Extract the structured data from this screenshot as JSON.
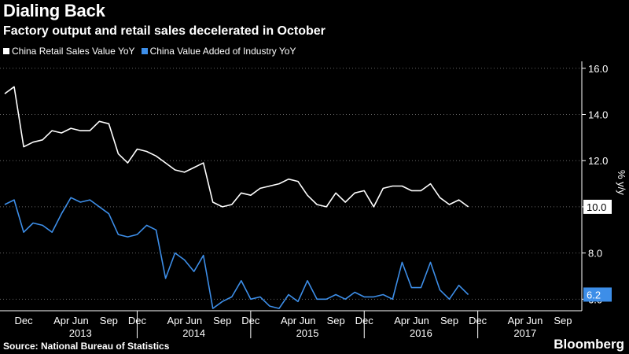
{
  "header": {
    "title": "Dialing Back",
    "subtitle": "Factory output and retail sales decelerated in October"
  },
  "legend": [
    {
      "label": "China Retail Sales Value YoY",
      "color": "#ffffff"
    },
    {
      "label": "China Value Added of Industry YoY",
      "color": "#3d8ee8"
    }
  ],
  "footer": {
    "source": "Source: National Bureau of Statistics",
    "brand": "Bloomberg"
  },
  "chart_data": {
    "type": "line",
    "ylabel": "% y/y",
    "ylim": [
      5.5,
      16.3
    ],
    "yticks": [
      6.0,
      8.0,
      10.0,
      12.0,
      14.0,
      16.0
    ],
    "ytick_labels": [
      "6.0",
      "8.0",
      "10.0",
      "12.0",
      "14.0",
      "16.0"
    ],
    "grid": "horizontal dotted",
    "x_month_ticks": [
      {
        "label": "Dec",
        "date": "2012-12"
      },
      {
        "label": "Apr",
        "date": "2013-04"
      },
      {
        "label": "Jun",
        "date": "2013-06"
      },
      {
        "label": "Sep",
        "date": "2013-09"
      },
      {
        "label": "Dec",
        "date": "2013-12"
      },
      {
        "label": "Apr",
        "date": "2014-04"
      },
      {
        "label": "Jun",
        "date": "2014-06"
      },
      {
        "label": "Sep",
        "date": "2014-09"
      },
      {
        "label": "Dec",
        "date": "2014-12"
      },
      {
        "label": "Apr",
        "date": "2015-04"
      },
      {
        "label": "Jun",
        "date": "2015-06"
      },
      {
        "label": "Sep",
        "date": "2015-09"
      },
      {
        "label": "Dec",
        "date": "2015-12"
      },
      {
        "label": "Apr",
        "date": "2016-04"
      },
      {
        "label": "Jun",
        "date": "2016-06"
      },
      {
        "label": "Sep",
        "date": "2016-09"
      },
      {
        "label": "Dec",
        "date": "2016-12"
      },
      {
        "label": "Apr",
        "date": "2017-04"
      },
      {
        "label": "Jun",
        "date": "2017-06"
      },
      {
        "label": "Sep",
        "date": "2017-09"
      }
    ],
    "x_year_labels": [
      {
        "label": "2013",
        "start": "2012-12",
        "end": "2013-12"
      },
      {
        "label": "2014",
        "start": "2013-12",
        "end": "2014-12"
      },
      {
        "label": "2015",
        "start": "2014-12",
        "end": "2015-12"
      },
      {
        "label": "2016",
        "start": "2015-12",
        "end": "2016-12"
      },
      {
        "label": "2017",
        "start": "2016-12",
        "end": "2017-10"
      }
    ],
    "series": [
      {
        "name": "China Retail Sales Value YoY",
        "color": "#ffffff",
        "last_label": "10.0",
        "points": [
          [
            "2012-10",
            14.9
          ],
          [
            "2012-11",
            15.2
          ],
          [
            "2012-12",
            12.6
          ],
          [
            "2013-01",
            12.8
          ],
          [
            "2013-02",
            12.9
          ],
          [
            "2013-03",
            13.3
          ],
          [
            "2013-04",
            13.2
          ],
          [
            "2013-05",
            13.4
          ],
          [
            "2013-06",
            13.3
          ],
          [
            "2013-07",
            13.3
          ],
          [
            "2013-08",
            13.7
          ],
          [
            "2013-09",
            13.6
          ],
          [
            "2013-10",
            12.3
          ],
          [
            "2013-11",
            11.9
          ],
          [
            "2013-12",
            12.5
          ],
          [
            "2014-01",
            12.4
          ],
          [
            "2014-02",
            12.2
          ],
          [
            "2014-03",
            11.9
          ],
          [
            "2014-04",
            11.6
          ],
          [
            "2014-05",
            11.5
          ],
          [
            "2014-06",
            11.7
          ],
          [
            "2014-07",
            11.9
          ],
          [
            "2014-08",
            10.2
          ],
          [
            "2014-09",
            10.0
          ],
          [
            "2014-10",
            10.1
          ],
          [
            "2014-11",
            10.6
          ],
          [
            "2014-12",
            10.5
          ],
          [
            "2015-01",
            10.8
          ],
          [
            "2015-02",
            10.9
          ],
          [
            "2015-03",
            11.0
          ],
          [
            "2015-04",
            11.2
          ],
          [
            "2015-05",
            11.1
          ],
          [
            "2015-06",
            10.5
          ],
          [
            "2015-07",
            10.1
          ],
          [
            "2015-08",
            10.0
          ],
          [
            "2015-09",
            10.6
          ],
          [
            "2015-10",
            10.2
          ],
          [
            "2015-11",
            10.6
          ],
          [
            "2015-12",
            10.7
          ],
          [
            "2016-01",
            10.0
          ],
          [
            "2016-02",
            10.8
          ],
          [
            "2016-03",
            10.9
          ],
          [
            "2016-04",
            10.9
          ],
          [
            "2016-05",
            10.7
          ],
          [
            "2016-06",
            10.7
          ],
          [
            "2016-07",
            11.0
          ],
          [
            "2016-08",
            10.4
          ],
          [
            "2016-09",
            10.1
          ],
          [
            "2016-10",
            10.3
          ],
          [
            "2016-11",
            10.0
          ]
        ]
      },
      {
        "name": "China Value Added of Industry YoY",
        "color": "#3d8ee8",
        "last_label": "6.2",
        "points": [
          [
            "2012-10",
            10.1
          ],
          [
            "2012-11",
            10.3
          ],
          [
            "2012-12",
            8.9
          ],
          [
            "2013-01",
            9.3
          ],
          [
            "2013-02",
            9.2
          ],
          [
            "2013-03",
            8.9
          ],
          [
            "2013-04",
            9.7
          ],
          [
            "2013-05",
            10.4
          ],
          [
            "2013-06",
            10.2
          ],
          [
            "2013-07",
            10.3
          ],
          [
            "2013-08",
            10.0
          ],
          [
            "2013-09",
            9.7
          ],
          [
            "2013-10",
            8.8
          ],
          [
            "2013-11",
            8.7
          ],
          [
            "2013-12",
            8.8
          ],
          [
            "2014-01",
            9.2
          ],
          [
            "2014-02",
            9.0
          ],
          [
            "2014-03",
            6.9
          ],
          [
            "2014-04",
            8.0
          ],
          [
            "2014-05",
            7.7
          ],
          [
            "2014-06",
            7.2
          ],
          [
            "2014-07",
            7.9
          ],
          [
            "2014-08",
            5.6
          ],
          [
            "2014-09",
            5.9
          ],
          [
            "2014-10",
            6.1
          ],
          [
            "2014-11",
            6.8
          ],
          [
            "2014-12",
            6.0
          ],
          [
            "2015-01",
            6.1
          ],
          [
            "2015-02",
            5.7
          ],
          [
            "2015-03",
            5.6
          ],
          [
            "2015-04",
            6.2
          ],
          [
            "2015-05",
            5.9
          ],
          [
            "2015-06",
            6.8
          ],
          [
            "2015-07",
            6.0
          ],
          [
            "2015-08",
            6.0
          ],
          [
            "2015-09",
            6.2
          ],
          [
            "2015-10",
            6.0
          ],
          [
            "2015-11",
            6.3
          ],
          [
            "2015-12",
            6.1
          ],
          [
            "2016-01",
            6.1
          ],
          [
            "2016-02",
            6.2
          ],
          [
            "2016-03",
            6.0
          ],
          [
            "2016-04",
            7.6
          ],
          [
            "2016-05",
            6.5
          ],
          [
            "2016-06",
            6.5
          ],
          [
            "2016-07",
            7.6
          ],
          [
            "2016-08",
            6.4
          ],
          [
            "2016-09",
            6.0
          ],
          [
            "2016-10",
            6.6
          ],
          [
            "2016-11",
            6.2
          ]
        ]
      }
    ]
  }
}
